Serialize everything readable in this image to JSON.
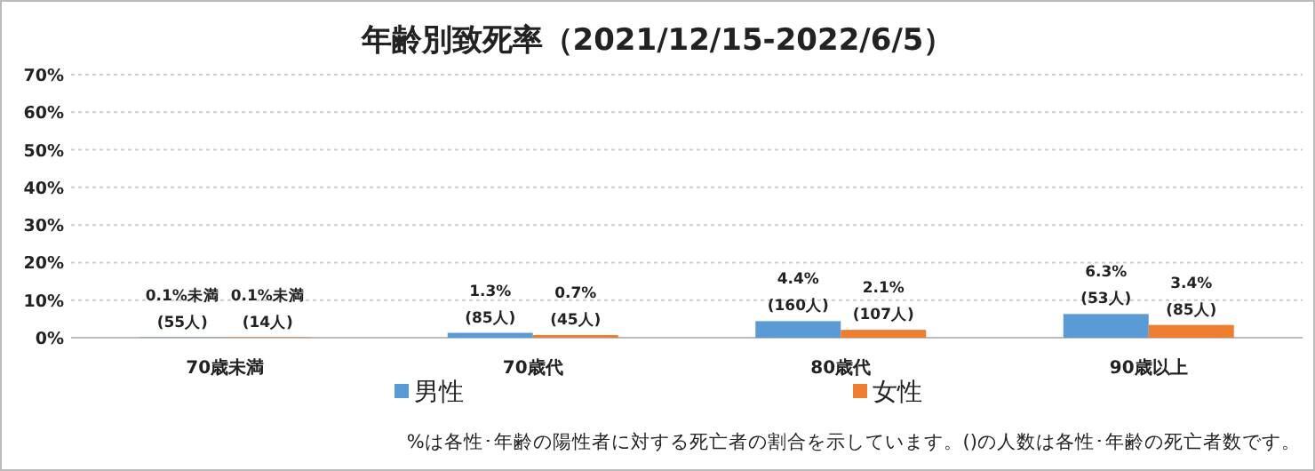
{
  "chart_data": {
    "type": "bar",
    "title": "年齢別致死率（2021/12/15-2022/6/5）",
    "categories": [
      "70歳未満",
      "70歳代",
      "80歳代",
      "90歳以上"
    ],
    "series": [
      {
        "name": "男性",
        "color": "#5b9bd5",
        "values": [
          0.1,
          1.3,
          4.4,
          6.3
        ],
        "value_labels": [
          "0.1%未満\n(55人)",
          "1.3%\n(85人)",
          "4.4%\n(160人)",
          "6.3%\n(53人)"
        ]
      },
      {
        "name": "女性",
        "color": "#ed7d31",
        "values": [
          0.1,
          0.7,
          2.1,
          3.4
        ],
        "value_labels": [
          "0.1%未満\n(14人)",
          "0.7%\n(45人)",
          "2.1%\n(107人)",
          "3.4%\n(85人)"
        ]
      }
    ],
    "ylim": [
      0,
      70
    ],
    "yticks": [
      {
        "value": 0,
        "label": "0%"
      },
      {
        "value": 10,
        "label": "10%"
      },
      {
        "value": 20,
        "label": "20%"
      },
      {
        "value": 30,
        "label": "30%"
      },
      {
        "value": 40,
        "label": "40%"
      },
      {
        "value": 50,
        "label": "50%"
      },
      {
        "value": 60,
        "label": "60%"
      },
      {
        "value": 70,
        "label": "70%"
      }
    ],
    "grid": "y",
    "legend": "bottom",
    "annotations": [
      "%は各性･年齢の陽性者に対する死亡者の割合を示しています。()の人数は各性･年齢の死亡者数です。"
    ]
  }
}
